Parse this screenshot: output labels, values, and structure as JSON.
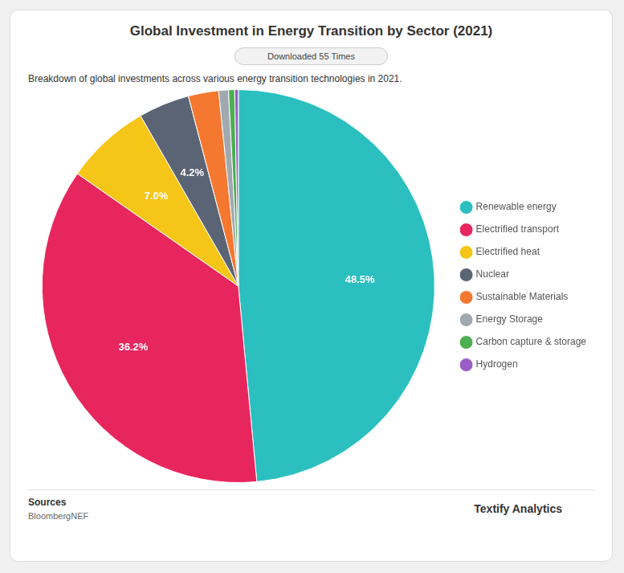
{
  "chart_data": {
    "type": "pie",
    "title": "Global Investment in Energy Transition by Sector (2021)",
    "subtitle": "Breakdown of global investments across various energy transition technologies in 2021.",
    "annotations": [
      "Downloaded 55 Times",
      "Sources",
      "BloombergNEF",
      "Textify Analytics"
    ],
    "categories": [
      "Renewable energy",
      "Electrified transport",
      "Electrified heat",
      "Nuclear",
      "Sustainable Materials",
      "Energy Storage",
      "Carbon capture & storage",
      "Hydrogen"
    ],
    "values": [
      48.5,
      36.2,
      7.0,
      4.2,
      2.5,
      0.8,
      0.5,
      0.3
    ],
    "value_labels": [
      "48.5%",
      "36.2%",
      "7.0%",
      "4.2%",
      null,
      null,
      null,
      null
    ],
    "colors": [
      "#2BBFBF",
      "#E8265E",
      "#F5C518",
      "#5A6475",
      "#F47830",
      "#A0A8B0",
      "#4CAF50",
      "#9C5DC7"
    ],
    "data_labels": true,
    "legend": "right"
  }
}
